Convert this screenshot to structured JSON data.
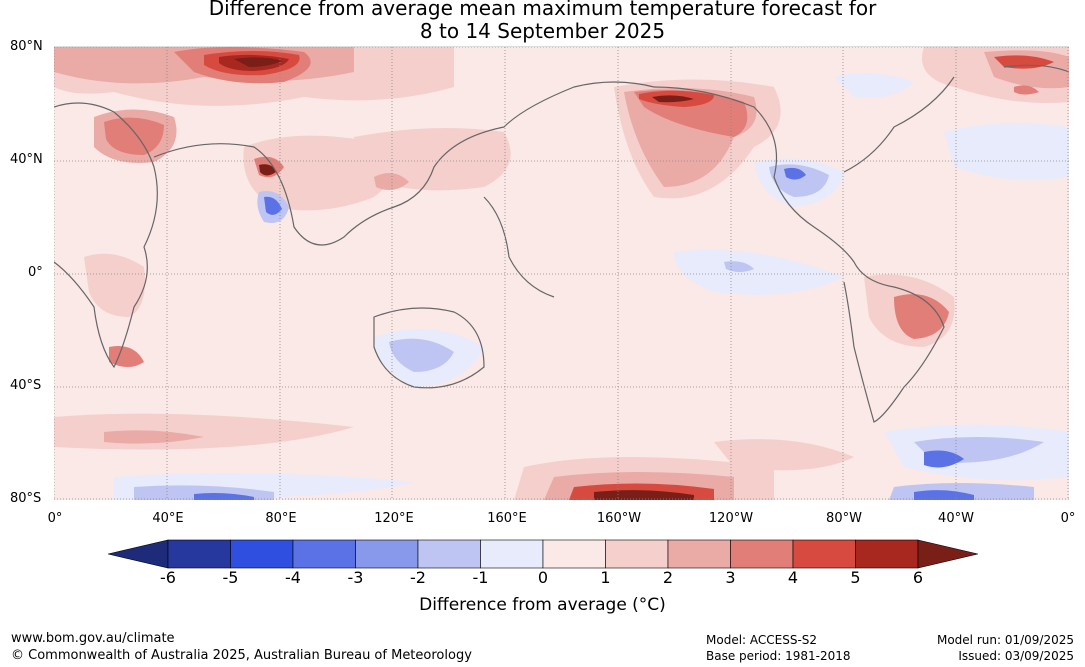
{
  "title_line1": "Difference from average mean maximum temperature forecast for",
  "title_line2": "8 to 14 September 2025",
  "map": {
    "lat_labels": [
      "80°N",
      "40°N",
      "0°",
      "40°S",
      "80°S"
    ],
    "lon_labels": [
      "0°",
      "40°E",
      "80°E",
      "120°E",
      "160°E",
      "160°W",
      "120°W",
      "80°W",
      "40°W",
      "0°"
    ]
  },
  "colorbar": {
    "ticks": [
      "-6",
      "-5",
      "-4",
      "-3",
      "-2",
      "-1",
      "0",
      "1",
      "2",
      "3",
      "4",
      "5",
      "6"
    ],
    "colors": [
      "#26389e",
      "#2f4fe0",
      "#5a72e6",
      "#8898ea",
      "#bfc5f2",
      "#e8ebfb",
      "#fbe9e7",
      "#f5cfcc",
      "#eaaaa6",
      "#e07e77",
      "#d64a40",
      "#a8281f"
    ],
    "end_low": "#1e2a7a",
    "end_high": "#7a1e18",
    "label": "Difference from average (°C)"
  },
  "footer": {
    "url": "www.bom.gov.au/climate",
    "copyright": "© Commonwealth of Australia 2025, Australian Bureau of Meteorology",
    "model": "Model: ACCESS-S2",
    "base_period": "Base period: 1981-2018",
    "model_run": "Model run: 01/09/2025",
    "issued": "Issued: 03/09/2025"
  }
}
